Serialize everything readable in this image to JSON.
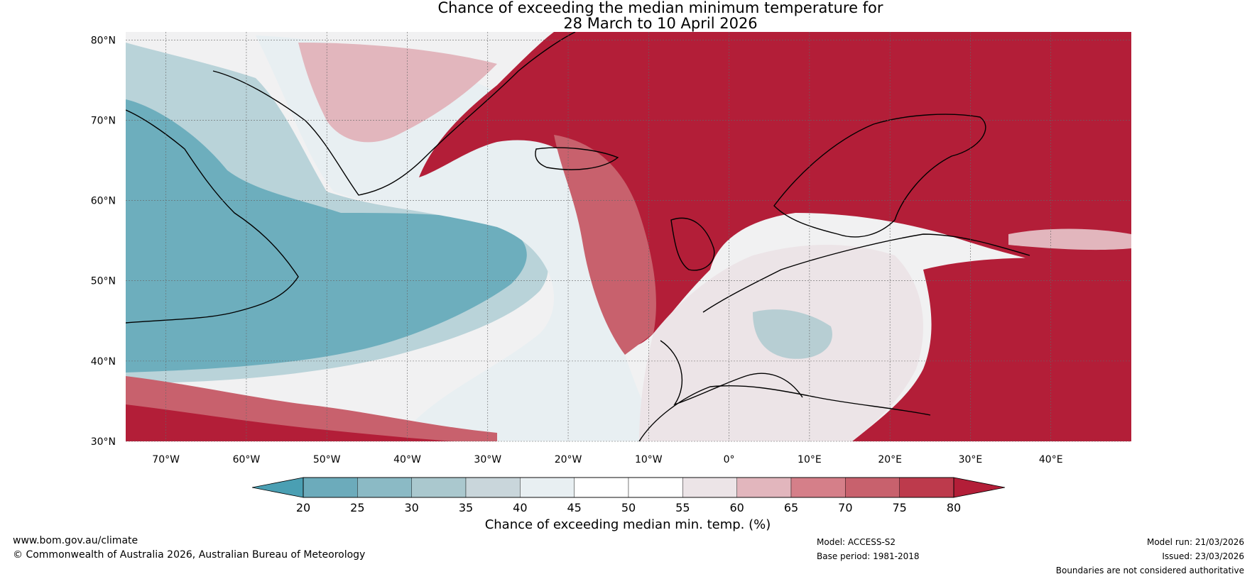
{
  "title_line1": "Chance of exceeding the median minimum temperature for",
  "title_line2": "28 March to 10 April 2026",
  "lat_labels": [
    "80°N",
    "70°N",
    "60°N",
    "50°N",
    "40°N",
    "30°N"
  ],
  "lon_labels": [
    "70°W",
    "60°W",
    "50°W",
    "40°W",
    "30°W",
    "20°W",
    "10°W",
    "0°",
    "10°E",
    "20°E",
    "30°E",
    "40°E"
  ],
  "map_extent": {
    "lon_min": -75,
    "lon_max": 50,
    "lat_min": 30,
    "lat_max": 81
  },
  "colorbar": {
    "ticks": [
      "20",
      "25",
      "30",
      "35",
      "40",
      "45",
      "50",
      "55",
      "60",
      "65",
      "70",
      "75",
      "80"
    ],
    "colors": [
      "#4a9fb3",
      "#6cabbb",
      "#8bbac5",
      "#aac8ce",
      "#c9d6db",
      "#e8eff2",
      "#ffffff",
      "#ffffff",
      "#ece4e7",
      "#e2b6bd",
      "#d57f89",
      "#c8616d",
      "#bd3a4c"
    ],
    "under_color": "#4a9fb3",
    "over_color": "#b31e38",
    "label": "Chance of exceeding median min. temp. (%)"
  },
  "footer": {
    "website": "www.bom.gov.au/climate",
    "copyright": "© Commonwealth of Australia 2026, Australian Bureau of Meteorology",
    "model": "Model: ACCESS-S2",
    "base_period": "Base period: 1981-2018",
    "model_run": "Model run: 21/03/2026",
    "issued": "Issued: 23/03/2026",
    "boundaries": "Boundaries are not considered authoritative"
  },
  "regions": [
    {
      "name": "western-north-atlantic-below-median",
      "color": "#4a9fb3"
    },
    {
      "name": "central-atlantic-near-median",
      "color": "#e8eff2"
    },
    {
      "name": "northeast-atlantic-above-median",
      "color": "#b31e38"
    },
    {
      "name": "southern-europe-near-median",
      "color": "#ece4e7"
    },
    {
      "name": "eastern-europe-above-median",
      "color": "#b31e38"
    },
    {
      "name": "subtropical-atlantic-above-median",
      "color": "#c8616d"
    }
  ]
}
